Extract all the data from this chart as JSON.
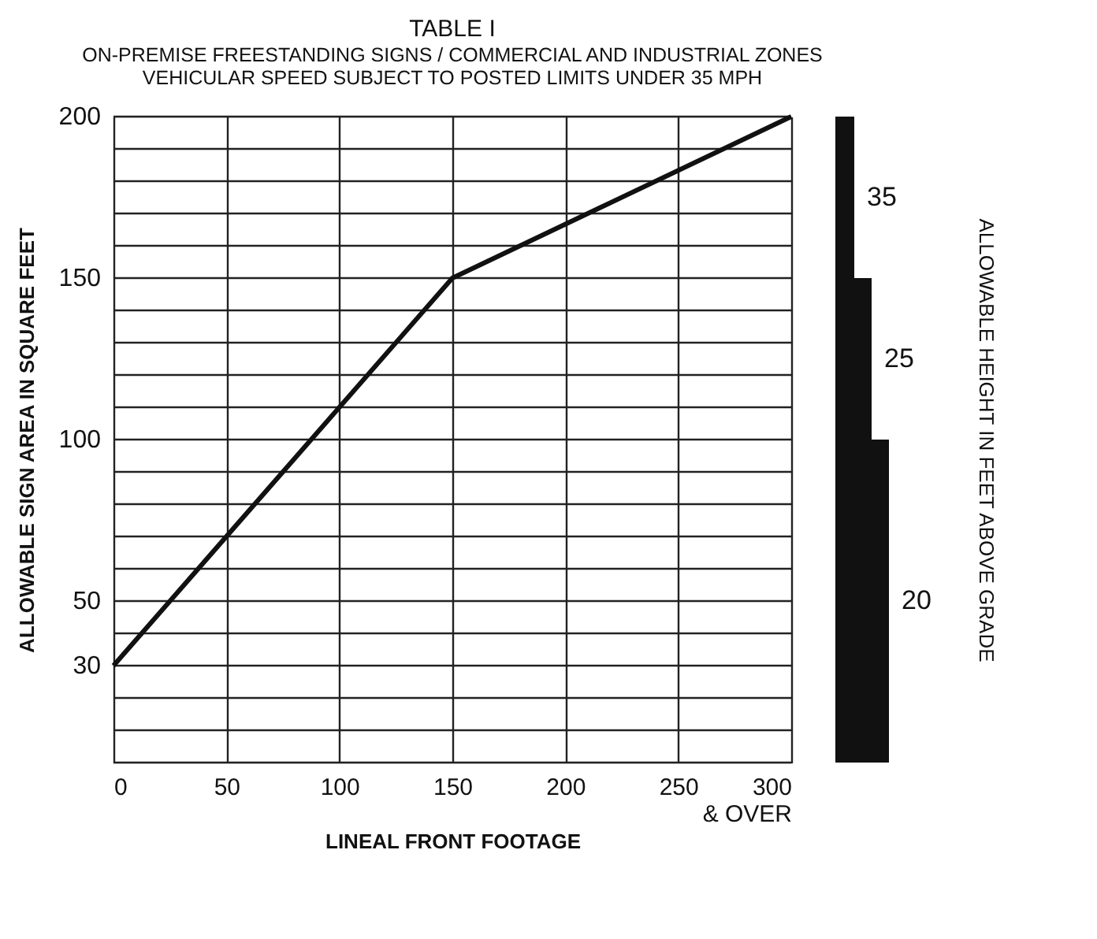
{
  "chart_data": [
    {
      "type": "line",
      "title": "TABLE I",
      "subtitle": "ON-PREMISE FREESTANDING SIGNS / COMMERCIAL AND INDUSTRIAL ZONES\nVEHICULAR SPEED SUBJECT TO POSTED LIMITS UNDER 35 MPH",
      "xlabel": "LINEAL FRONT FOOTAGE",
      "ylabel": "ALLOWABLE SIGN AREA IN SQUARE FEET",
      "x": [
        0,
        150,
        300
      ],
      "series": [
        {
          "color": "#111111",
          "values": [
            30,
            150,
            200
          ]
        }
      ],
      "xlim": [
        0,
        300
      ],
      "xticks": [
        0,
        50,
        100,
        150,
        200,
        250,
        {
          "value": 300,
          "label": "300\n& OVER"
        }
      ],
      "ylim": [
        0,
        200
      ],
      "yticks": [
        {
          "value": 0,
          "label": null
        },
        {
          "value": 10,
          "label": null
        },
        {
          "value": 20,
          "label": null
        },
        30,
        {
          "value": 40,
          "label": null
        },
        50,
        {
          "value": 60,
          "label": null
        },
        {
          "value": 70,
          "label": null
        },
        {
          "value": 80,
          "label": null
        },
        {
          "value": 90,
          "label": null
        },
        100,
        {
          "value": 110,
          "label": null
        },
        {
          "value": 120,
          "label": null
        },
        {
          "value": 130,
          "label": null
        },
        {
          "value": 140,
          "label": null
        },
        150,
        {
          "value": 160,
          "label": null
        },
        {
          "value": 170,
          "label": null
        },
        {
          "value": 180,
          "label": null
        },
        {
          "value": 190,
          "label": null
        },
        200
      ],
      "grid": true,
      "marker": "none",
      "line_style": "solid"
    },
    {
      "type": "bar",
      "ylabel": "ALLOWABLE HEIGHT IN FEET ABOVE GRADE",
      "categories": [
        null
      ],
      "stacked": true,
      "series": [
        {
          "name": "20",
          "color": "#111111",
          "values": [
            100
          ]
        },
        {
          "name": "25",
          "color": "#111111",
          "values": [
            50
          ]
        },
        {
          "name": "35",
          "color": "#111111",
          "values": [
            50
          ]
        }
      ],
      "ylim": [
        0,
        200
      ],
      "tick_labels": false
    }
  ]
}
